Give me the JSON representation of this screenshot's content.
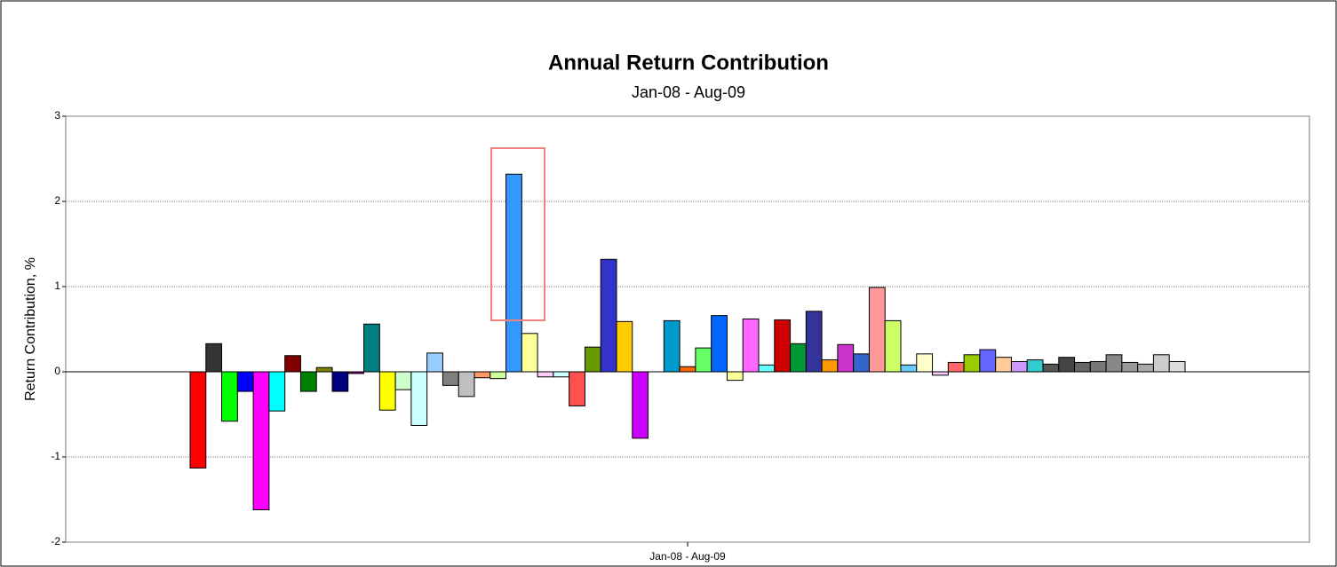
{
  "chart_data": {
    "type": "bar",
    "title": "Annual Return Contribution",
    "subtitle": "Jan-08 - Aug-09",
    "y_label": "Return Contribution, %",
    "categories": [
      "Jan-08 - Aug-09"
    ],
    "ylim": [
      -2,
      3
    ],
    "yticks": [
      -2,
      -1,
      0,
      1,
      2,
      3
    ],
    "grid": true,
    "series": [
      {
        "color": "#ff0000",
        "values": [
          -1.13
        ]
      },
      {
        "color": "#333333",
        "values": [
          0.33
        ]
      },
      {
        "color": "#00ff00",
        "values": [
          -0.58
        ]
      },
      {
        "color": "#0000ff",
        "values": [
          -0.23
        ]
      },
      {
        "color": "#ff00ff",
        "values": [
          -1.62
        ]
      },
      {
        "color": "#00ffff",
        "values": [
          -0.46
        ]
      },
      {
        "color": "#800000",
        "values": [
          0.19
        ]
      },
      {
        "color": "#008000",
        "values": [
          -0.23
        ]
      },
      {
        "color": "#808000",
        "values": [
          0.05
        ]
      },
      {
        "color": "#000080",
        "values": [
          -0.23
        ]
      },
      {
        "color": "#800080",
        "values": [
          -0.02
        ]
      },
      {
        "color": "#008080",
        "values": [
          0.56
        ]
      },
      {
        "color": "#ffff00",
        "values": [
          -0.45
        ]
      },
      {
        "color": "#ccffcc",
        "values": [
          -0.21
        ]
      },
      {
        "color": "#ccffff",
        "values": [
          -0.63
        ]
      },
      {
        "color": "#99ccff",
        "values": [
          0.22
        ]
      },
      {
        "color": "#808080",
        "values": [
          -0.16
        ]
      },
      {
        "color": "#c0c0c0",
        "values": [
          -0.29
        ]
      },
      {
        "color": "#ff9966",
        "values": [
          -0.07
        ]
      },
      {
        "color": "#ccff99",
        "values": [
          -0.08
        ]
      },
      {
        "color": "#3399ff",
        "values": [
          2.32
        ]
      },
      {
        "color": "#ffff99",
        "values": [
          0.45
        ]
      },
      {
        "color": "#ffccff",
        "values": [
          -0.06
        ]
      },
      {
        "color": "#ccffff",
        "values": [
          -0.06
        ]
      },
      {
        "color": "#ff5050",
        "values": [
          -0.4
        ]
      },
      {
        "color": "#669900",
        "values": [
          0.29
        ]
      },
      {
        "color": "#3333cc",
        "values": [
          1.32
        ]
      },
      {
        "color": "#ffcc00",
        "values": [
          0.59
        ]
      },
      {
        "color": "#cc00ff",
        "values": [
          -0.78
        ]
      },
      {
        "color": "#999999",
        "values": [
          0
        ]
      },
      {
        "color": "#0099cc",
        "values": [
          0.6
        ]
      },
      {
        "color": "#ff6600",
        "values": [
          0.06
        ]
      },
      {
        "color": "#66ff66",
        "values": [
          0.28
        ]
      },
      {
        "color": "#0066ff",
        "values": [
          0.66
        ]
      },
      {
        "color": "#ffff99",
        "values": [
          -0.1
        ]
      },
      {
        "color": "#ff66ff",
        "values": [
          0.62
        ]
      },
      {
        "color": "#66ffff",
        "values": [
          0.08
        ]
      },
      {
        "color": "#cc0000",
        "values": [
          0.61
        ]
      },
      {
        "color": "#009933",
        "values": [
          0.33
        ]
      },
      {
        "color": "#333399",
        "values": [
          0.71
        ]
      },
      {
        "color": "#ff9900",
        "values": [
          0.14
        ]
      },
      {
        "color": "#cc33cc",
        "values": [
          0.32
        ]
      },
      {
        "color": "#3366cc",
        "values": [
          0.21
        ]
      },
      {
        "color": "#ff9999",
        "values": [
          0.99
        ]
      },
      {
        "color": "#ccff66",
        "values": [
          0.6
        ]
      },
      {
        "color": "#66ccff",
        "values": [
          0.08
        ]
      },
      {
        "color": "#ffffcc",
        "values": [
          0.21
        ]
      },
      {
        "color": "#ffccff",
        "values": [
          -0.04
        ]
      },
      {
        "color": "#ff6666",
        "values": [
          0.11
        ]
      },
      {
        "color": "#99cc00",
        "values": [
          0.2
        ]
      },
      {
        "color": "#6666ff",
        "values": [
          0.26
        ]
      },
      {
        "color": "#ffcc99",
        "values": [
          0.17
        ]
      },
      {
        "color": "#cc99ff",
        "values": [
          0.12
        ]
      },
      {
        "color": "#33cccc",
        "values": [
          0.14
        ]
      },
      {
        "color": "#555555",
        "values": [
          0.09
        ]
      },
      {
        "color": "#444444",
        "values": [
          0.17
        ]
      },
      {
        "color": "#666666",
        "values": [
          0.11
        ]
      },
      {
        "color": "#777777",
        "values": [
          0.12
        ]
      },
      {
        "color": "#888888",
        "values": [
          0.2
        ]
      },
      {
        "color": "#999999",
        "values": [
          0.11
        ]
      },
      {
        "color": "#aaaaaa",
        "values": [
          0.09
        ]
      },
      {
        "color": "#cccccc",
        "values": [
          0.2
        ]
      },
      {
        "color": "#dddddd",
        "values": [
          0.12
        ]
      }
    ]
  }
}
